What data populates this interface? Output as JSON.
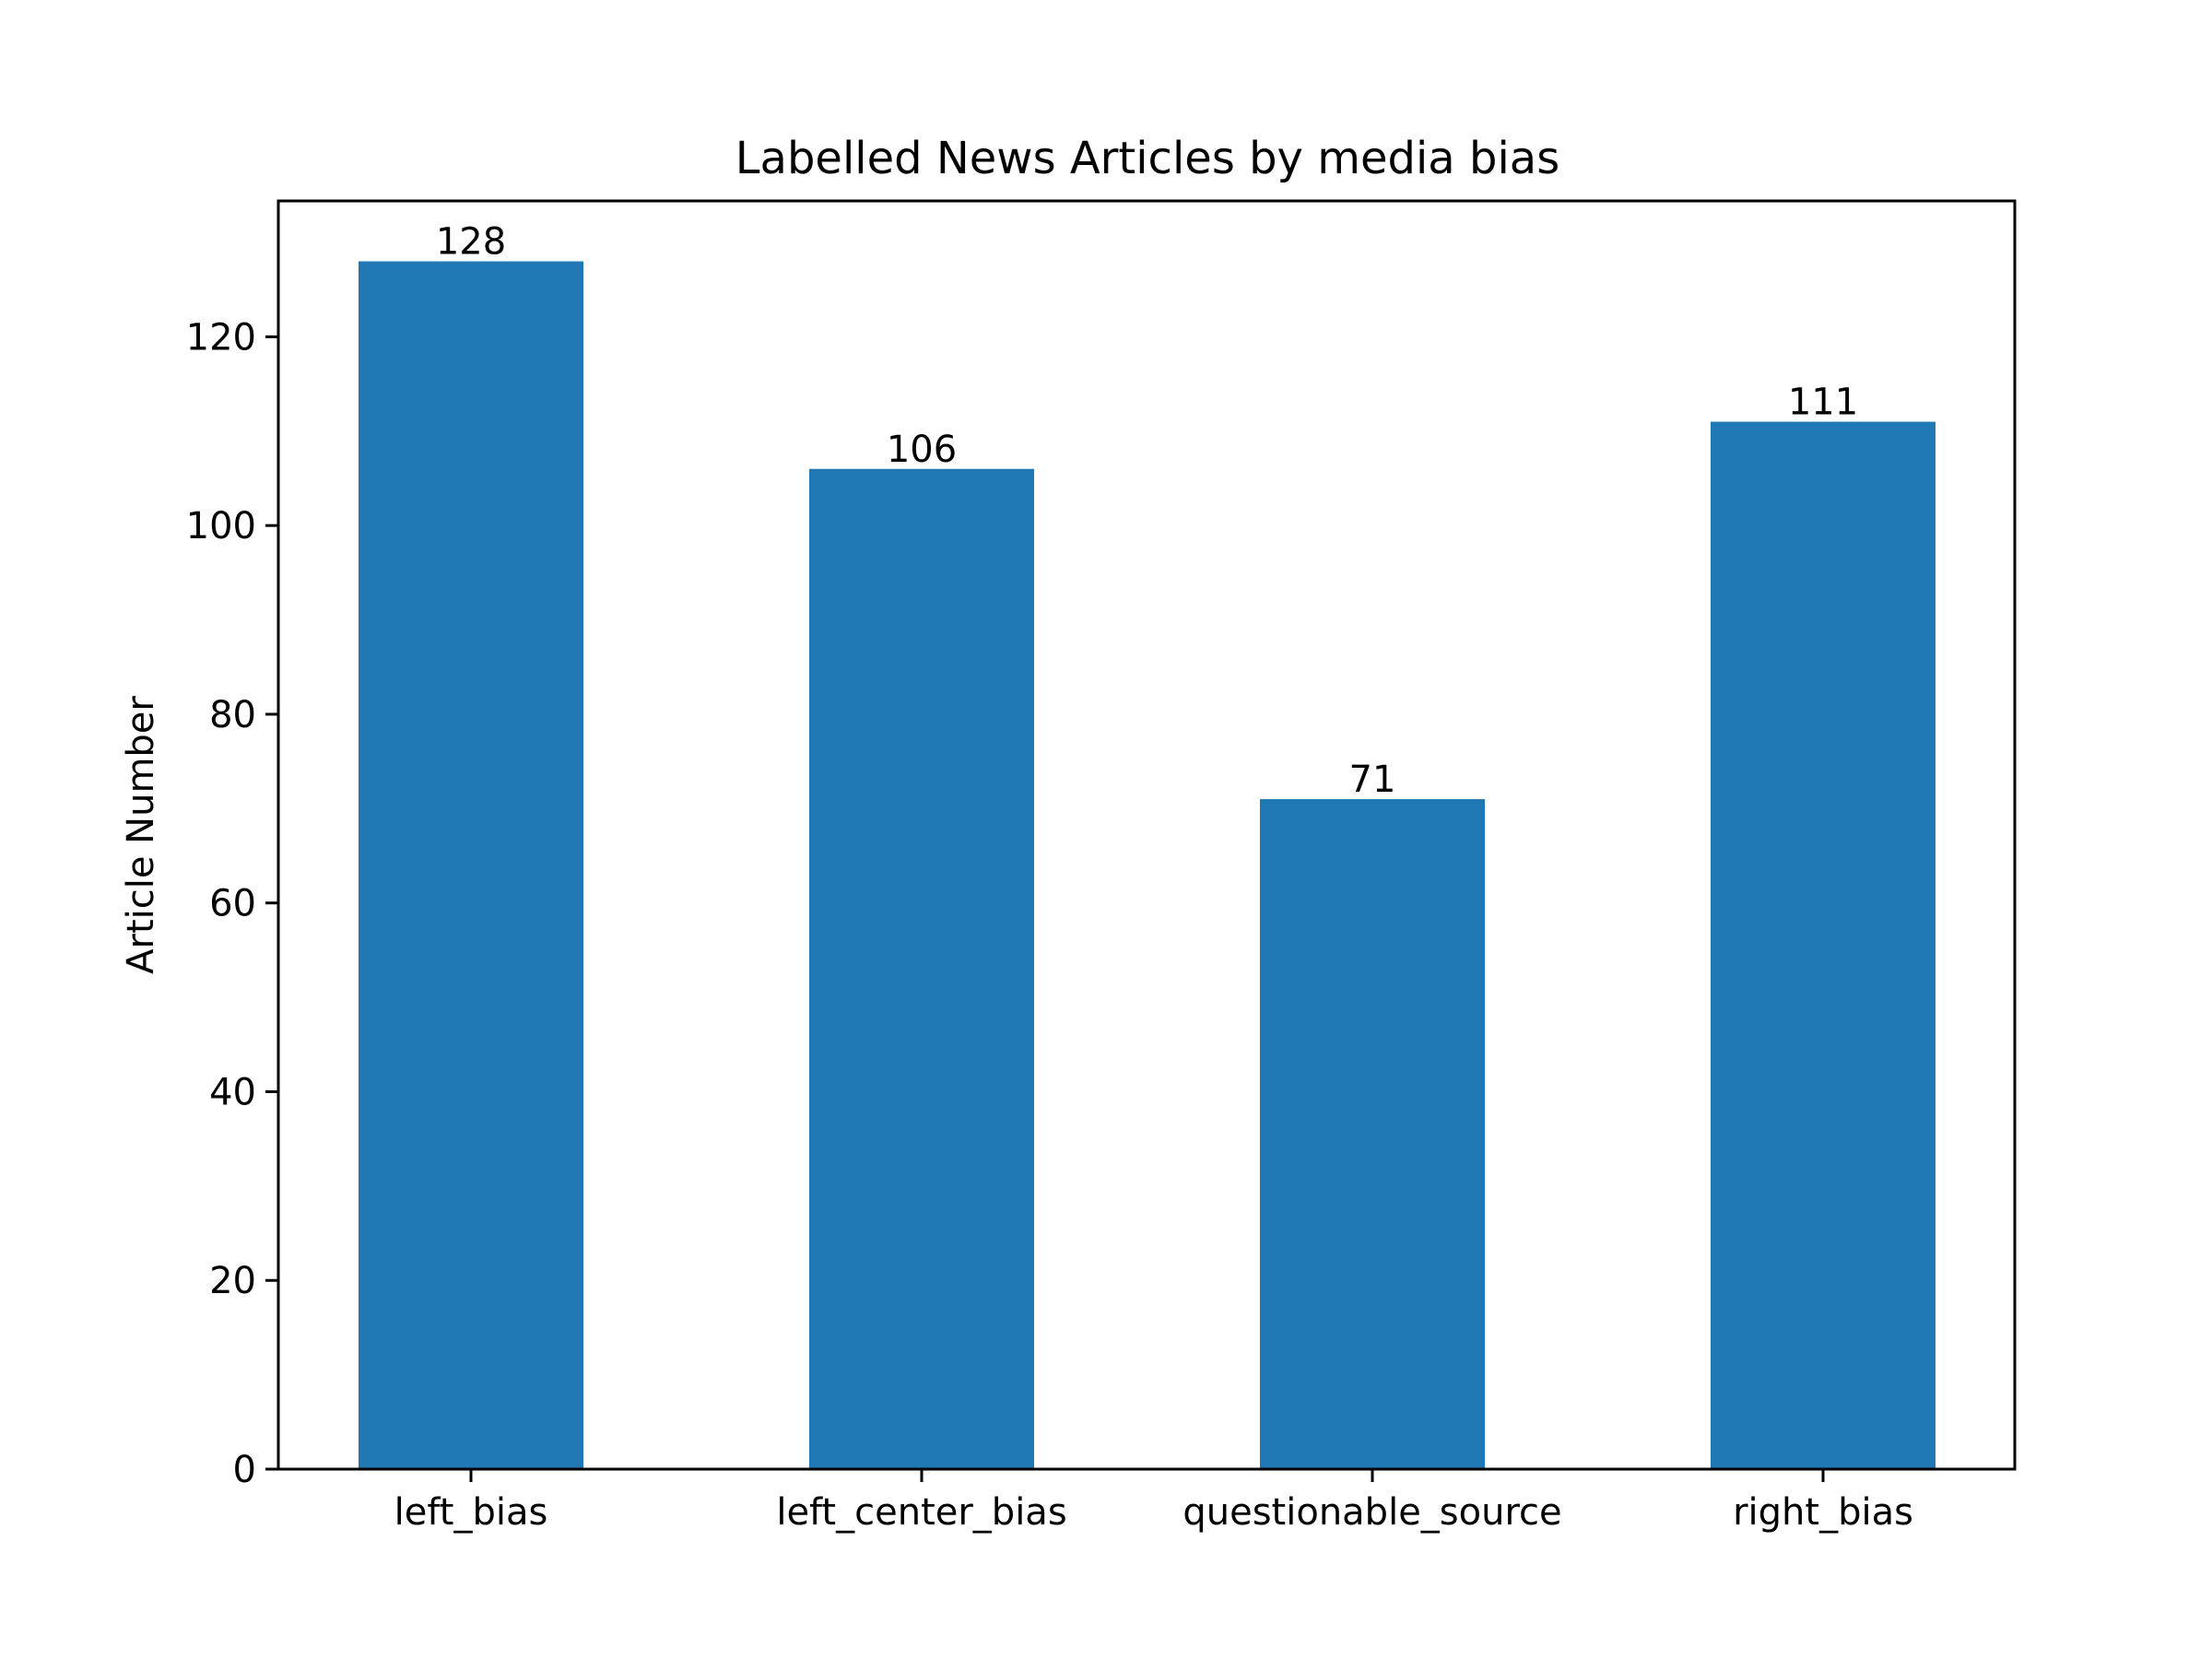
{
  "chart_data": {
    "type": "bar",
    "title": "Labelled News Articles by media bias",
    "xlabel": "",
    "ylabel": "Article Number",
    "categories": [
      "left_bias",
      "left_center_bias",
      "questionable_source",
      "right_bias"
    ],
    "values": [
      128,
      106,
      71,
      111
    ],
    "data_labels": [
      "128",
      "106",
      "71",
      "111"
    ],
    "ylim": [
      0,
      134.4
    ],
    "yticks": [
      0,
      20,
      40,
      60,
      80,
      100,
      120
    ],
    "grid": false,
    "bar_color": "#1f77b4"
  }
}
